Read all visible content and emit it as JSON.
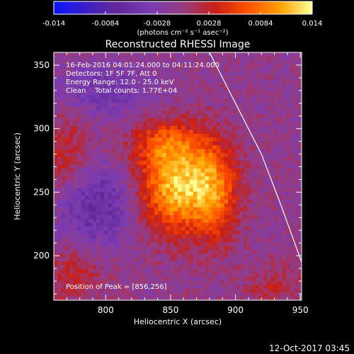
{
  "chart_data": {
    "type": "heatmap",
    "title": "Reconstructed RHESSI Image",
    "xlabel": "Heliocentric X (arcsec)",
    "ylabel": "Heliocentric Y (arcsec)",
    "xlim": [
      760,
      951
    ],
    "ylim": [
      165,
      360
    ],
    "x_ticks": [
      800,
      850,
      900,
      950
    ],
    "y_ticks": [
      200,
      250,
      300,
      350
    ],
    "colorbar": {
      "min": -0.014,
      "max": 0.014,
      "ticks": [
        "-0.014",
        "-0.0084",
        "-0.0028",
        "0.0028",
        "0.0084",
        "0.014"
      ],
      "unit_label": "(photons cm⁻² s⁻¹ asec⁻²)",
      "colors": [
        "#0a14ff",
        "#3c1ec8",
        "#642896",
        "#7a3cb4",
        "#963c82",
        "#c81e14",
        "#ff5000",
        "#ffa000",
        "#ffff96"
      ]
    },
    "annotations": [
      "16-Feb-2016 04:01:24.000 to 04:11:24.000",
      "Detectors: 1F 5F 7F, Att 0",
      "Energy Range: 12.0 - 25.0 keV",
      "Clean    Total counts: 1.77E+04"
    ],
    "peak_label": "Position of Peak = [856,256]",
    "peak": {
      "x": 856,
      "y": 256
    },
    "limb_curve": [
      [
        880,
        360
      ],
      [
        900,
        320
      ],
      [
        920,
        280
      ],
      [
        935,
        240
      ],
      [
        951,
        195
      ]
    ],
    "sources": [
      {
        "x": 856,
        "y": 256,
        "sigma_x": 22,
        "sigma_y": 26,
        "peak_value": 0.0132
      },
      {
        "x": 885,
        "y": 250,
        "sigma_x": 12,
        "sigma_y": 28,
        "peak_value": 0.0062
      },
      {
        "x": 845,
        "y": 290,
        "sigma_x": 18,
        "sigma_y": 12,
        "peak_value": 0.0045
      }
    ],
    "background": [
      {
        "x": 768,
        "y": 280,
        "sigma_x": 14,
        "sigma_y": 22,
        "peak_value": 0.004
      },
      {
        "x": 775,
        "y": 185,
        "sigma_x": 16,
        "sigma_y": 16,
        "peak_value": 0.0035
      },
      {
        "x": 930,
        "y": 175,
        "sigma_x": 18,
        "sigma_y": 12,
        "peak_value": 0.003
      },
      {
        "x": 795,
        "y": 240,
        "sigma_x": 22,
        "sigma_y": 22,
        "peak_value": -0.006
      },
      {
        "x": 800,
        "y": 330,
        "sigma_x": 28,
        "sigma_y": 14,
        "peak_value": -0.004
      }
    ]
  },
  "footer": {
    "timestamp": "12-Oct-2017 03:45"
  }
}
